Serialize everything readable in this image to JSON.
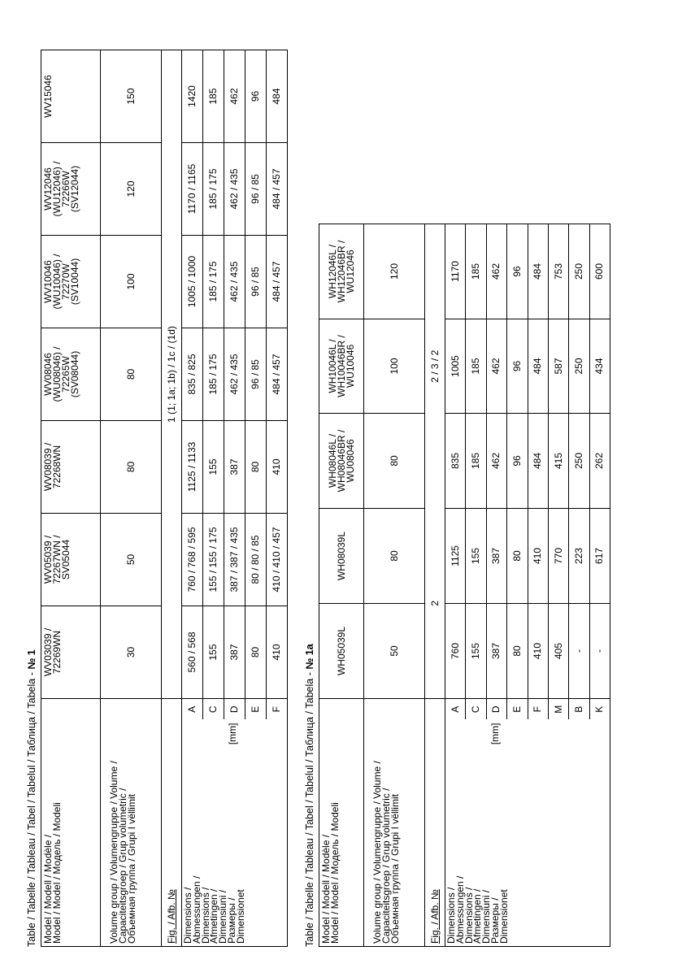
{
  "table1": {
    "title_prefix": "Table / Tabelle / Tableau / Tabel / Tabelul / Таблица / Tabela - ",
    "title_number": "№ 1",
    "model_label_lines": [
      "Model / Modell / Modèle /",
      "Model / Model / Модель / Modeli"
    ],
    "volume_label_lines": [
      "Volume group / Volumengruppe / Volume /",
      "Capaciteitsgroep / Grup volumetric  /",
      "Объемная группа / Grupi I vëllimit"
    ],
    "fig_label": "Fig. / Afb. №",
    "fig_values": [
      "1 (1; 1a; 1b) / 1c / (1d)"
    ],
    "dims_label_lines": [
      "Dimensions /",
      "Abmessungen /",
      "Dimensions /",
      "Afmetingen /",
      "Dimensiuni /",
      "Размеры /",
      "Dimensionet"
    ],
    "unit": "[mm]",
    "columns": [
      {
        "model_lines": [
          "WV03039 /",
          "72269WN"
        ],
        "volume": "30"
      },
      {
        "model_lines": [
          "WV05039 /",
          "72267WN /",
          "SV05044"
        ],
        "volume": "50"
      },
      {
        "model_lines": [
          "WV08039 /",
          "72268WN"
        ],
        "volume": "80"
      },
      {
        "model_lines": [
          "WV08046",
          "(WU08046) /",
          "72265W",
          "(SV08044)"
        ],
        "volume": "80"
      },
      {
        "model_lines": [
          "WV10046",
          "(WU10046) /",
          "72270W",
          "(SV10044)"
        ],
        "volume": "100"
      },
      {
        "model_lines": [
          "WV12046",
          "(WU12046) /",
          "72266W",
          "(SV12044)"
        ],
        "volume": "120"
      },
      {
        "model_lines": [
          "WV15046"
        ],
        "volume": "150"
      }
    ],
    "dims": [
      {
        "letter": "A",
        "values": [
          "560 / 568",
          "760 / 768 / 595",
          "1125 / 1133",
          "835 / 825",
          "1005 / 1000",
          "1170 / 1165",
          "1420"
        ]
      },
      {
        "letter": "C",
        "values": [
          "155",
          "155 / 155 / 175",
          "155",
          "185 / 175",
          "185 / 175",
          "185 / 175",
          "185"
        ]
      },
      {
        "letter": "D",
        "values": [
          "387",
          "387 / 387 / 435",
          "387",
          "462 / 435",
          "462 / 435",
          "462 / 435",
          "462"
        ]
      },
      {
        "letter": "E",
        "values": [
          "80",
          "80 / 80 / 85",
          "80",
          "96 / 85",
          "96 / 85",
          "96 / 85",
          "96"
        ]
      },
      {
        "letter": "F",
        "values": [
          "410",
          "410 / 410 / 457",
          "410",
          "484 / 457",
          "484 / 457",
          "484 / 457",
          "484"
        ]
      }
    ]
  },
  "table1a": {
    "title_prefix": "Table / Tabelle / Tableau / Tabel / Tabelul / Таблица / Tabela - ",
    "title_number": "№ 1a",
    "model_label_lines": [
      "Model / Modell / Modèle /",
      "Model / Model / Модель / Modeli"
    ],
    "volume_label_lines": [
      "Volume group / Volumengruppe / Volume /",
      "Capaciteitsgroep / Grup volumetric  /",
      "Объемная группа / Grupi I vëllimit"
    ],
    "fig_label": "Fig. / Afb. №",
    "fig_values": [
      "2",
      "2 / 3 / 2"
    ],
    "dims_label_lines": [
      "Dimensions /",
      "Abmessungen /",
      "Dimensions /",
      "Afmetingen /",
      "Dimensiuni /",
      "Размеры /",
      "Dimensionet"
    ],
    "unit": "[mm]",
    "columns": [
      {
        "model_lines": [
          "WH05039L"
        ],
        "volume": "50"
      },
      {
        "model_lines": [
          "WH08039L"
        ],
        "volume": "80"
      },
      {
        "model_lines": [
          "WH08046L /",
          "WH08046BR /",
          "WU08046"
        ],
        "volume": "80"
      },
      {
        "model_lines": [
          "WH10046L /",
          "WH10046BR /",
          "WU10046"
        ],
        "volume": "100"
      },
      {
        "model_lines": [
          "WH12046L /",
          "WH12046BR /",
          "WU12046"
        ],
        "volume": "120"
      }
    ],
    "dims": [
      {
        "letter": "A",
        "values": [
          "760",
          "1125",
          "835",
          "1005",
          "1170"
        ]
      },
      {
        "letter": "C",
        "values": [
          "155",
          "155",
          "185",
          "185",
          "185"
        ]
      },
      {
        "letter": "D",
        "values": [
          "387",
          "387",
          "462",
          "462",
          "462"
        ]
      },
      {
        "letter": "E",
        "values": [
          "80",
          "80",
          "96",
          "96",
          "96"
        ]
      },
      {
        "letter": "F",
        "values": [
          "410",
          "410",
          "484",
          "484",
          "484"
        ]
      },
      {
        "letter": "M",
        "values": [
          "405",
          "770",
          "415",
          "587",
          "753"
        ]
      },
      {
        "letter": "B",
        "values": [
          "-",
          "223",
          "250",
          "250",
          "250"
        ]
      },
      {
        "letter": "K",
        "values": [
          "-",
          "617",
          "262",
          "434",
          "600"
        ]
      }
    ]
  }
}
